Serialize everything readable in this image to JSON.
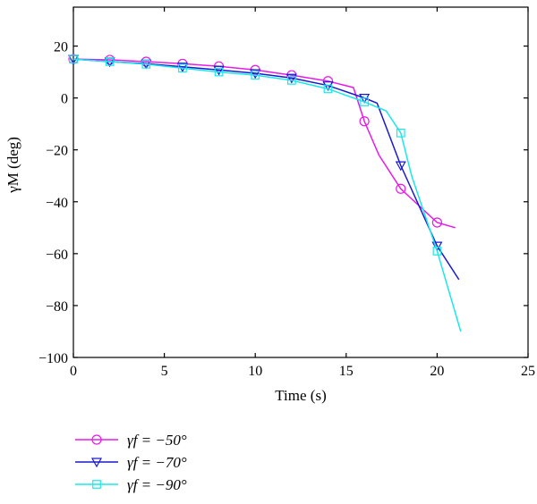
{
  "chart_data": {
    "type": "line",
    "xlabel": "Time (s)",
    "ylabel": "γM (deg)",
    "xlim": [
      0,
      25
    ],
    "ylim": [
      -100,
      35
    ],
    "xticks": [
      0,
      5,
      10,
      15,
      20,
      25
    ],
    "yticks": [
      20,
      0,
      -20,
      -40,
      -60,
      -80,
      -100
    ],
    "xtick_labels": [
      "0",
      "5",
      "10",
      "15",
      "20",
      "25"
    ],
    "ytick_labels": [
      "20",
      "0",
      "−20",
      "−40",
      "−60",
      "−80",
      "−100"
    ],
    "grid": false,
    "legend_position": "below plot, left",
    "legend": [
      "γf = −50°",
      "γf = −70°",
      "γf = −90°"
    ],
    "series": [
      {
        "name": "γf = −50°",
        "color": "#e81ae8",
        "marker": "circle",
        "x": [
          0,
          2,
          4,
          6,
          8,
          10,
          12,
          14,
          15.4,
          16,
          16.8,
          18,
          20,
          21
        ],
        "y": [
          15,
          14.7,
          14,
          13.2,
          12.2,
          10.8,
          8.8,
          6.5,
          4,
          -9,
          -22,
          -35,
          -48,
          -50
        ],
        "marker_x": [
          0,
          2,
          4,
          6,
          8,
          10,
          12,
          14,
          16,
          18,
          20
        ],
        "marker_y": [
          15,
          14.7,
          14,
          13.2,
          12.2,
          10.8,
          8.8,
          6.5,
          -9,
          -35,
          -48
        ]
      },
      {
        "name": "γf = −70°",
        "color": "#1a1acc",
        "marker": "triangle-down",
        "x": [
          0,
          2,
          4,
          6,
          8,
          10,
          12,
          14,
          16,
          16.7,
          18,
          20,
          21.2
        ],
        "y": [
          15,
          14,
          13.2,
          12,
          10.8,
          9.5,
          7.7,
          4.8,
          0,
          -2,
          -26,
          -57,
          -70
        ],
        "marker_x": [
          0,
          2,
          4,
          6,
          8,
          10,
          12,
          14,
          16,
          18,
          20
        ],
        "marker_y": [
          15,
          14,
          13.2,
          12,
          10.8,
          9.5,
          7.7,
          4.8,
          0,
          -26,
          -57
        ]
      },
      {
        "name": "γf = −90°",
        "color": "#1ae8e8",
        "marker": "square",
        "x": [
          0,
          2,
          4,
          6,
          8,
          10,
          12,
          14,
          16,
          17.2,
          18,
          18.6,
          20,
          21.3
        ],
        "y": [
          15,
          14,
          13,
          11.5,
          10,
          8.8,
          6.8,
          3.5,
          -1.5,
          -5,
          -13.5,
          -30,
          -59,
          -90
        ],
        "marker_x": [
          0,
          2,
          4,
          6,
          8,
          10,
          12,
          14,
          16,
          18,
          20
        ],
        "marker_y": [
          15,
          14,
          13,
          11.5,
          10,
          8.8,
          6.8,
          3.5,
          -1.5,
          -13.5,
          -59
        ]
      }
    ]
  }
}
